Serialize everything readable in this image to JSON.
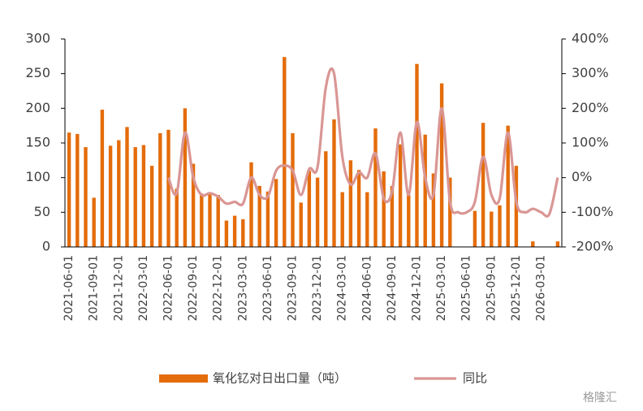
{
  "chart_data": {
    "type": "bar",
    "categories": [
      "2021-06-01",
      null,
      null,
      "2021-09-01",
      null,
      null,
      "2021-12-01",
      null,
      null,
      "2022-03-01",
      null,
      null,
      "2022-06-01",
      null,
      null,
      "2022-09-01",
      null,
      null,
      "2022-12-01",
      null,
      null,
      "2023-03-01",
      null,
      null,
      "2023-06-01",
      null,
      null,
      "2023-09-01",
      null,
      null,
      "2023-12-01",
      null,
      null,
      "2024-03-01",
      null,
      null,
      "2024-06-01",
      null,
      null,
      "2024-09-01",
      null,
      null,
      "2024-12-01",
      null,
      null,
      "2025-03-01",
      null,
      null,
      "2025-06-01",
      null,
      null,
      "2025-09-01",
      null,
      null,
      "2025-12-01",
      null,
      null,
      "2026-03-01",
      null,
      null
    ],
    "series": [
      {
        "name": "氧化钇对日出口量（吨）",
        "type": "bar",
        "color": "#e46c0a",
        "values": [
          165,
          163,
          144,
          71,
          198,
          146,
          154,
          173,
          144,
          147,
          117,
          164,
          169,
          84,
          200,
          120,
          77,
          78,
          75,
          38,
          45,
          40,
          122,
          88,
          80,
          98,
          274,
          164,
          64,
          110,
          100,
          138,
          184,
          79,
          125,
          111,
          79,
          171,
          109,
          88,
          148,
          75,
          264,
          162,
          106,
          236,
          100,
          0,
          0,
          52,
          179,
          51,
          60,
          175,
          117,
          0,
          8,
          0,
          0,
          8
        ]
      },
      {
        "name": "同比",
        "type": "line",
        "axis": "y2",
        "color": "#d99694",
        "values": [
          null,
          null,
          null,
          null,
          null,
          null,
          null,
          null,
          null,
          null,
          null,
          null,
          0,
          -45,
          130,
          0,
          -50,
          -45,
          -55,
          -75,
          -70,
          -75,
          0,
          -50,
          -55,
          20,
          35,
          20,
          -50,
          25,
          30,
          260,
          300,
          60,
          -20,
          15,
          0,
          70,
          -60,
          -40,
          130,
          -50,
          160,
          0,
          -50,
          200,
          -70,
          -100,
          -100,
          -70,
          60,
          -50,
          -60,
          130,
          -70,
          -100,
          -90,
          -100,
          -105,
          0
        ]
      }
    ],
    "ylim": [
      0,
      300
    ],
    "yticks": [
      0,
      50,
      100,
      150,
      200,
      250,
      300
    ],
    "y2lim": [
      -200,
      400
    ],
    "y2ticks": [
      {
        "value": -200,
        "label": "-200%"
      },
      {
        "value": -100,
        "label": "-100%"
      },
      {
        "value": 0,
        "label": "0%"
      },
      {
        "value": 100,
        "label": "100%"
      },
      {
        "value": 200,
        "label": "200%"
      },
      {
        "value": 300,
        "label": "300%"
      },
      {
        "value": 400,
        "label": "400%"
      }
    ],
    "watermark": "格隆汇"
  }
}
